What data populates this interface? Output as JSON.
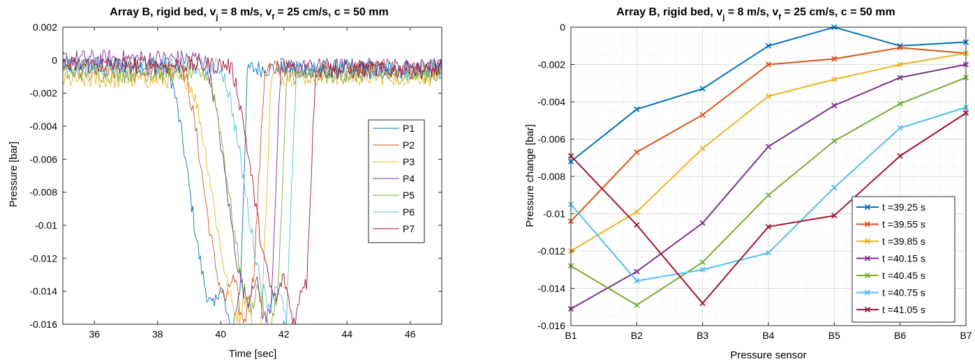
{
  "chart_data": [
    {
      "type": "line",
      "title": "Array B, rigid bed, v_j = 8 m/s, v_f = 25 cm/s, c = 50 mm",
      "xlabel": "Time [sec]",
      "ylabel": "Pressure [bar]",
      "xlim": [
        35,
        47
      ],
      "ylim": [
        -0.016,
        0.002
      ],
      "xticks": [
        "36",
        "38",
        "40",
        "42",
        "44",
        "46"
      ],
      "yticks": [
        "0.002",
        "0",
        "-0.002",
        "-0.004",
        "-0.006",
        "-0.008",
        "-0.01",
        "-0.012",
        "-0.014",
        "-0.016"
      ],
      "grid": false,
      "legend_position": "right",
      "series": [
        {
          "name": "P1",
          "color": "#0072BD",
          "baseline": -0.0003,
          "t0": 38.2,
          "t1": 39.8,
          "t2": 40.6,
          "t3": 40.85,
          "min": -0.015,
          "recover": -0.0005
        },
        {
          "name": "P2",
          "color": "#D95319",
          "baseline": -0.0005,
          "t0": 38.7,
          "t1": 40.2,
          "t2": 41.0,
          "t3": 41.4,
          "min": -0.0145,
          "recover": -0.0005
        },
        {
          "name": "P3",
          "color": "#EDB120",
          "baseline": -0.0012,
          "t0": 38.9,
          "t1": 40.6,
          "t2": 41.3,
          "t3": 41.6,
          "min": -0.0155,
          "recover": -0.001
        },
        {
          "name": "P4",
          "color": "#7E2F8E",
          "baseline": 0.0001,
          "t0": 39.4,
          "t1": 40.9,
          "t2": 41.6,
          "t3": 41.9,
          "min": -0.0145,
          "recover": -0.0004
        },
        {
          "name": "P5",
          "color": "#77AC30",
          "baseline": -0.0008,
          "t0": 39.5,
          "t1": 41.0,
          "t2": 41.8,
          "t3": 42.1,
          "min": -0.015,
          "recover": -0.0009
        },
        {
          "name": "P6",
          "color": "#4DBEEE",
          "baseline": -0.0004,
          "t0": 39.9,
          "t1": 41.6,
          "t2": 42.1,
          "t3": 42.4,
          "min": -0.0148,
          "recover": -0.0006
        },
        {
          "name": "P7",
          "color": "#A2142F",
          "baseline": -0.0003,
          "t0": 40.2,
          "t1": 41.8,
          "t2": 42.7,
          "t3": 43.0,
          "min": -0.0145,
          "recover": -0.0006
        }
      ]
    },
    {
      "type": "line",
      "title": "Array B, rigid bed, v_j = 8 m/s, v_f = 25 cm/s, c = 50 mm",
      "xlabel": "Pressure sensor",
      "ylabel": "Pressure change [bar]",
      "categories": [
        "B1",
        "B2",
        "B3",
        "B4",
        "B5",
        "B6",
        "B7"
      ],
      "ylim": [
        -0.016,
        0
      ],
      "yticks": [
        "0",
        "-0.002",
        "-0.004",
        "-0.006",
        "-0.008",
        "-0.01",
        "-0.012",
        "-0.014",
        "-0.016"
      ],
      "grid": true,
      "legend_position": "bottom-right",
      "series": [
        {
          "name": "t =39.25 s",
          "color": "#0072BD",
          "values": [
            -0.0072,
            -0.0044,
            -0.0033,
            -0.001,
            0.0,
            -0.001,
            -0.0008
          ]
        },
        {
          "name": "t =39.55 s",
          "color": "#D95319",
          "values": [
            -0.0104,
            -0.0067,
            -0.0047,
            -0.002,
            -0.0017,
            -0.0011,
            -0.0014
          ]
        },
        {
          "name": "t =39.85 s",
          "color": "#EDB120",
          "values": [
            -0.012,
            -0.0099,
            -0.0065,
            -0.0037,
            -0.0028,
            -0.002,
            -0.0014
          ]
        },
        {
          "name": "t =40.15 s",
          "color": "#7E2F8E",
          "values": [
            -0.0151,
            -0.0131,
            -0.0105,
            -0.0064,
            -0.0042,
            -0.0027,
            -0.002
          ]
        },
        {
          "name": "t =40.45 s",
          "color": "#77AC30",
          "values": [
            -0.0128,
            -0.0149,
            -0.0126,
            -0.009,
            -0.0061,
            -0.0041,
            -0.0027
          ]
        },
        {
          "name": "t =40.75 s",
          "color": "#4DBEEE",
          "values": [
            -0.0095,
            -0.0136,
            -0.013,
            -0.0121,
            -0.0086,
            -0.0054,
            -0.0043
          ]
        },
        {
          "name": "t =41.05 s",
          "color": "#A2142F",
          "values": [
            -0.0069,
            -0.0106,
            -0.0148,
            -0.0107,
            -0.0101,
            -0.0069,
            -0.0046
          ]
        }
      ]
    }
  ]
}
